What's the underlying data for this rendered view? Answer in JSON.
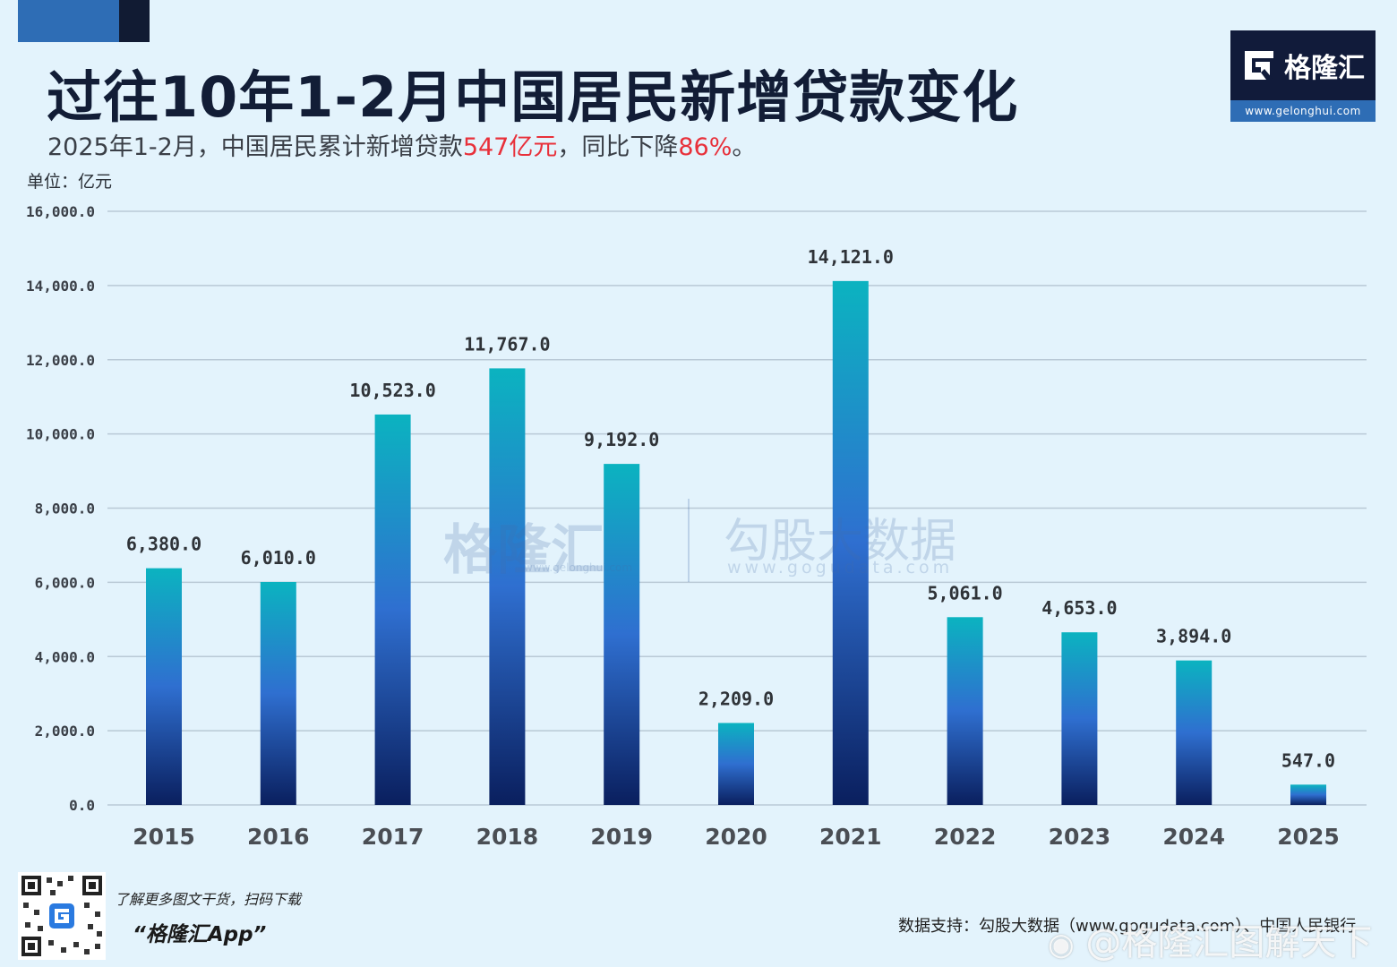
{
  "header": {
    "title": "过往10年1-2月中国居民新增贷款变化",
    "subtitle_prefix": "2025年1-2月，中国居民累计新增贷款",
    "subtitle_hl1": "547亿元",
    "subtitle_mid": "，同比下降",
    "subtitle_hl2": "86%",
    "subtitle_suffix": "。",
    "unit": "单位：亿元"
  },
  "logo": {
    "name": "格隆汇",
    "url": "www.gelonghui.com"
  },
  "watermark": {
    "brand1": "格隆汇",
    "brand1_url": "www.gelonghui.com",
    "brand2": "勾股大数据",
    "brand2_url": "www.gogudata.com"
  },
  "footer": {
    "promo_line": "了解更多图文干货，扫码下载",
    "app_name": "“格隆汇App”",
    "source": "数据支持：勾股大数据（www.gogudata.com）、中国人民银行",
    "weibo_mark": "@格隆汇图解天下"
  },
  "colors": {
    "bar_top": "#0bb3c0",
    "bar_mid": "#2f6fd0",
    "bar_bottom": "#0a1f5e",
    "highlight": "#e8303a",
    "grid": "#b9c9d6"
  },
  "chart_data": {
    "type": "bar",
    "title": "过往10年1-2月中国居民新增贷款变化",
    "xlabel": "",
    "ylabel": "单位：亿元",
    "categories": [
      "2015",
      "2016",
      "2017",
      "2018",
      "2019",
      "2020",
      "2021",
      "2022",
      "2023",
      "2024",
      "2025"
    ],
    "values": [
      6380.0,
      6010.0,
      10523.0,
      11767.0,
      9192.0,
      2209.0,
      14121.0,
      5061.0,
      4653.0,
      3894.0,
      547.0
    ],
    "data_labels": [
      "6,380.0",
      "6,010.0",
      "10,523.0",
      "11,767.0",
      "9,192.0",
      "2,209.0",
      "14,121.0",
      "5,061.0",
      "4,653.0",
      "3,894.0",
      "547.0"
    ],
    "ylim": [
      0,
      16000
    ],
    "yticks": [
      0,
      2000,
      4000,
      6000,
      8000,
      10000,
      12000,
      14000,
      16000
    ],
    "ytick_labels": [
      "0.0",
      "2,000.0",
      "4,000.0",
      "6,000.0",
      "8,000.0",
      "10,000.0",
      "12,000.0",
      "14,000.0",
      "16,000.0"
    ],
    "grid": true,
    "legend": "none"
  }
}
